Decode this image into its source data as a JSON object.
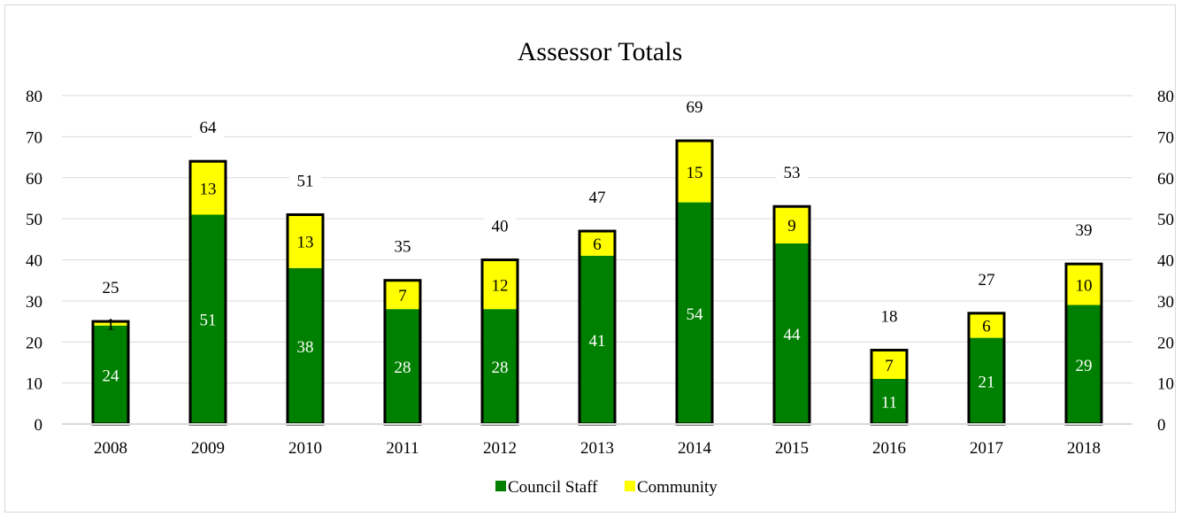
{
  "chart_data": {
    "type": "bar",
    "stacked": true,
    "title": "Assessor Totals",
    "categories": [
      "2008",
      "2009",
      "2010",
      "2011",
      "2012",
      "2013",
      "2014",
      "2015",
      "2016",
      "2017",
      "2018"
    ],
    "series": [
      {
        "name": "Council Staff",
        "color": "#008000",
        "values": [
          24,
          51,
          38,
          28,
          28,
          41,
          54,
          44,
          11,
          21,
          29
        ]
      },
      {
        "name": "Community",
        "color": "#ffff00",
        "values": [
          1,
          13,
          13,
          7,
          12,
          6,
          15,
          9,
          7,
          6,
          10
        ]
      }
    ],
    "totals": [
      25,
      64,
      51,
      35,
      40,
      47,
      69,
      53,
      18,
      27,
      39
    ],
    "ylim": [
      0,
      80
    ],
    "yticks": [
      0,
      10,
      20,
      30,
      40,
      50,
      60,
      70,
      80
    ],
    "secondary_yaxis": true,
    "grid": true,
    "legend": "bottom",
    "data_labels": true
  }
}
